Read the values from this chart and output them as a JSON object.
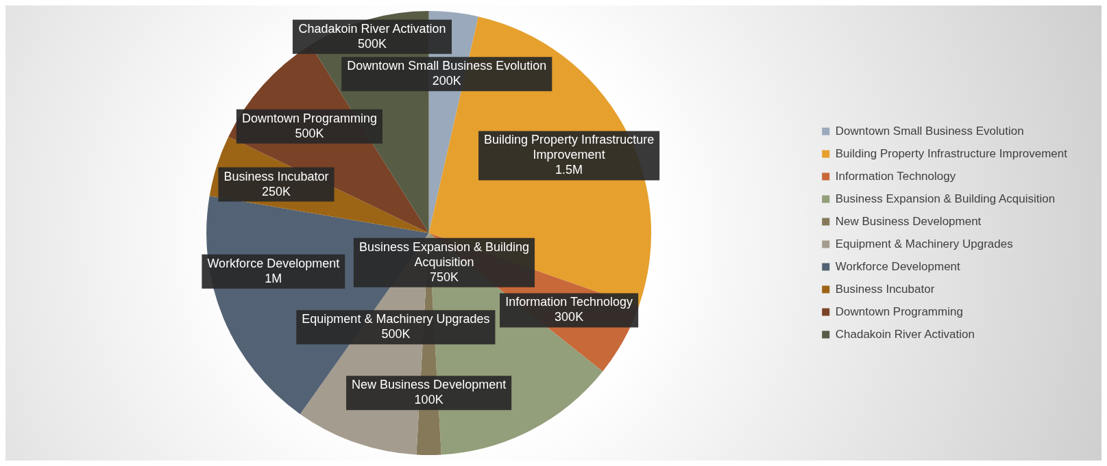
{
  "chart_data": {
    "type": "pie",
    "categories": [
      "Downtown Small Business Evolution",
      "Building Property Infrastructure Improvement",
      "Information Technology",
      "Business Expansion & Building Acquisition",
      "New Business Development",
      "Equipment & Machinery Upgrades",
      "Workforce Development",
      "Business Incubator",
      "Downtown Programming",
      "Chadakoin River Activation"
    ],
    "values": [
      200000,
      1500000,
      300000,
      750000,
      100000,
      500000,
      1000000,
      250000,
      500000,
      500000
    ],
    "value_labels": [
      "200K",
      "1.5M",
      "300K",
      "750K",
      "100K",
      "500K",
      "1M",
      "250K",
      "500K",
      "500K"
    ],
    "colors": [
      "#9aa9bb",
      "#e6a02e",
      "#c8693a",
      "#939e7a",
      "#85795a",
      "#a49c8e",
      "#536274",
      "#9c6415",
      "#7a4226",
      "#575c45"
    ],
    "legend": "right"
  }
}
